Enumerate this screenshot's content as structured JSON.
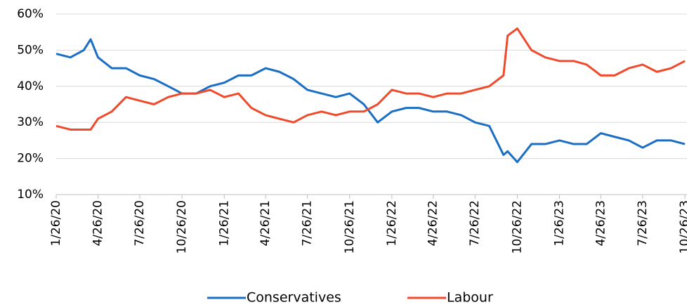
{
  "chart_data": {
    "type": "line",
    "x": [
      "1/26/20",
      "2/26/20",
      "3/26/20",
      "4/10/20",
      "4/26/20",
      "5/26/20",
      "6/26/20",
      "7/26/20",
      "8/26/20",
      "9/26/20",
      "10/26/20",
      "11/26/20",
      "12/26/20",
      "1/26/21",
      "2/26/21",
      "3/26/21",
      "4/26/21",
      "5/26/21",
      "6/26/21",
      "7/26/21",
      "8/26/21",
      "9/26/21",
      "10/26/21",
      "11/26/21",
      "12/26/21",
      "1/26/22",
      "2/26/22",
      "3/26/22",
      "4/26/22",
      "5/26/22",
      "6/26/22",
      "7/26/22",
      "8/26/22",
      "9/26/22",
      "10/5/22",
      "10/26/22",
      "11/26/22",
      "12/26/22",
      "1/26/23",
      "2/26/23",
      "3/26/23",
      "4/26/23",
      "5/26/23",
      "6/26/23",
      "7/26/23",
      "8/26/23",
      "9/26/23",
      "10/26/23"
    ],
    "series": [
      {
        "name": "Conservatives",
        "color": "#1a6fc4",
        "values": [
          49,
          48,
          50,
          53,
          48,
          45,
          45,
          43,
          42,
          40,
          38,
          38,
          40,
          41,
          43,
          43,
          45,
          44,
          42,
          39,
          38,
          37,
          38,
          35,
          30,
          33,
          34,
          34,
          33,
          33,
          32,
          30,
          29,
          21,
          22,
          19,
          24,
          24,
          25,
          24,
          24,
          27,
          26,
          25,
          23,
          25,
          25,
          24
        ]
      },
      {
        "name": "Labour",
        "color": "#f04a2c",
        "values": [
          29,
          28,
          28,
          28,
          31,
          33,
          37,
          36,
          35,
          37,
          38,
          38,
          39,
          37,
          38,
          34,
          32,
          31,
          30,
          32,
          33,
          32,
          33,
          33,
          35,
          39,
          38,
          38,
          37,
          38,
          38,
          39,
          40,
          43,
          54,
          56,
          50,
          48,
          47,
          47,
          46,
          43,
          43,
          45,
          46,
          44,
          45,
          47
        ]
      }
    ],
    "xlim": [
      "1/26/20",
      "10/28/23"
    ],
    "xticks": [
      "1/26/20",
      "4/26/20",
      "7/26/20",
      "10/26/20",
      "1/26/21",
      "4/26/21",
      "7/26/21",
      "10/26/21",
      "1/26/22",
      "4/26/22",
      "7/26/22",
      "10/26/22",
      "1/26/23",
      "4/26/23",
      "7/26/23",
      "10/26/23"
    ],
    "ylim": [
      10,
      60
    ],
    "yticks": [
      {
        "value": 10,
        "label": "10%"
      },
      {
        "value": 20,
        "label": "20%"
      },
      {
        "value": 30,
        "label": "30%"
      },
      {
        "value": 40,
        "label": "40%"
      },
      {
        "value": 50,
        "label": "50%"
      },
      {
        "value": 60,
        "label": "60%"
      }
    ],
    "grid": true,
    "legend": "bottom"
  }
}
